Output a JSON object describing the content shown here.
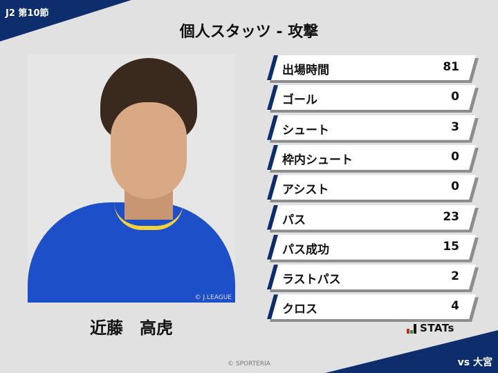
{
  "header": {
    "round": "J2 第10節",
    "title": "個人スタッツ - 攻撃",
    "opponent": "vs 大宮"
  },
  "player": {
    "name": "近藤　高虎",
    "photo_credit": "© J.LEAGUE"
  },
  "stats": [
    {
      "label": "出場時間",
      "value": "81"
    },
    {
      "label": "ゴール",
      "value": "0"
    },
    {
      "label": "シュート",
      "value": "3"
    },
    {
      "label": "枠内シュート",
      "value": "0"
    },
    {
      "label": "アシスト",
      "value": "0"
    },
    {
      "label": "パス",
      "value": "23"
    },
    {
      "label": "パス成功",
      "value": "15"
    },
    {
      "label": "ラストパス",
      "value": "2"
    },
    {
      "label": "クロス",
      "value": "4"
    }
  ],
  "logo": {
    "text": "STATs"
  },
  "footer": {
    "copyright": "© SPORTERIA"
  },
  "colors": {
    "navy": "#0d2d6c",
    "logo_red": "#e02020",
    "logo_green": "#1a9a3a"
  }
}
